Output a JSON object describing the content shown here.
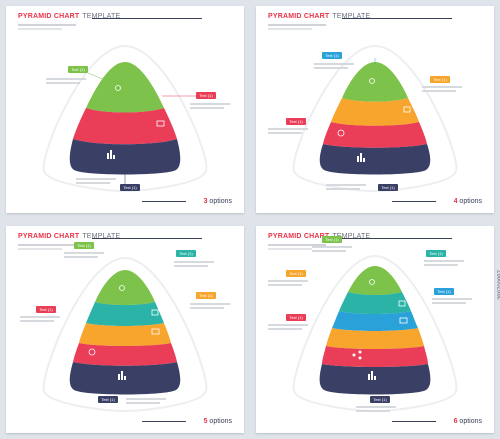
{
  "colors": {
    "green": "#7dc24a",
    "red": "#ea3e58",
    "navy": "#3a3f66",
    "orange": "#f7a52c",
    "teal": "#2ab3a6",
    "blue": "#2aa2d9",
    "background": "#dfe3ea",
    "title_red": "#e8334a"
  },
  "panels": [
    {
      "title_bold": "PYRAMID CHART",
      "title_rest": "TEMPLATE",
      "options_num": "3",
      "options_word": "options",
      "tags": [
        "Text (1)",
        "Text (1)",
        "Text (1)"
      ]
    },
    {
      "title_bold": "PYRAMID CHART",
      "title_rest": "TEMPLATE",
      "options_num": "4",
      "options_word": "options",
      "tags": [
        "Text (1)",
        "Text (1)",
        "Text (1)",
        "Text (1)"
      ]
    },
    {
      "title_bold": "PYRAMID CHART",
      "title_rest": "TEMPLATE",
      "options_num": "5",
      "options_word": "options",
      "tags": [
        "Text (1)",
        "Text (1)",
        "Text (1)",
        "Text (1)",
        "Text (1)"
      ]
    },
    {
      "title_bold": "PYRAMID CHART",
      "title_rest": "TEMPLATE",
      "options_num": "6",
      "options_word": "options",
      "tags": [
        "Text (1)",
        "Text (1)",
        "Text (1)",
        "Text (1)",
        "Text (1)",
        "Text (1)"
      ]
    }
  ],
  "stock_id": "299700997",
  "icons": [
    "person-icon",
    "chat-icon",
    "bar-chart-icon",
    "gauge-icon",
    "monitor-icon",
    "share-icon"
  ]
}
